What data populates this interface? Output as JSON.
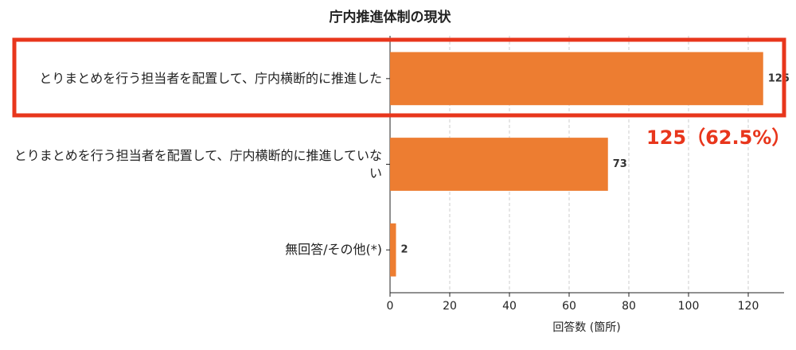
{
  "chart_data": {
    "type": "barh",
    "title": "庁内推進体制の現状",
    "categories": [
      "とりまとめを行う担当者を配置して、庁内横断的に推進した",
      "とりまとめを行う担当者を配置して、庁内横断的に推進していない",
      "無回答/その他(*)"
    ],
    "values": [
      125,
      73,
      2
    ],
    "color": "#ed7d31",
    "xlabel": "回答数 (箇所)",
    "xlim": [
      0,
      132
    ],
    "xticks": [
      0,
      20,
      40,
      60,
      80,
      100,
      120
    ],
    "grid": true,
    "annotation": "125（62.5%）",
    "highlight_color": "#e8361c"
  }
}
